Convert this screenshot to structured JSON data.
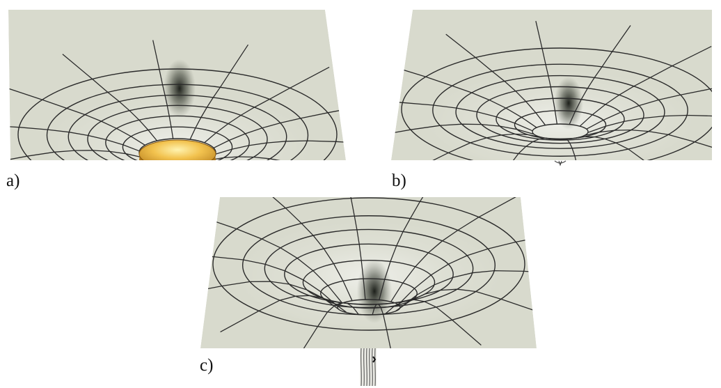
{
  "figure": {
    "panels": [
      {
        "id": "a",
        "label": "a)",
        "variant": "with-object",
        "object_color": "#e0a62e"
      },
      {
        "id": "b",
        "label": "b)",
        "variant": "pinched"
      },
      {
        "id": "c",
        "label": "c)",
        "variant": "throat"
      }
    ],
    "colors": {
      "surface": "#d8dacd",
      "grid_line": "#2a2a2a",
      "shadow": "#1a1d17",
      "object": "#e0a62e"
    }
  }
}
